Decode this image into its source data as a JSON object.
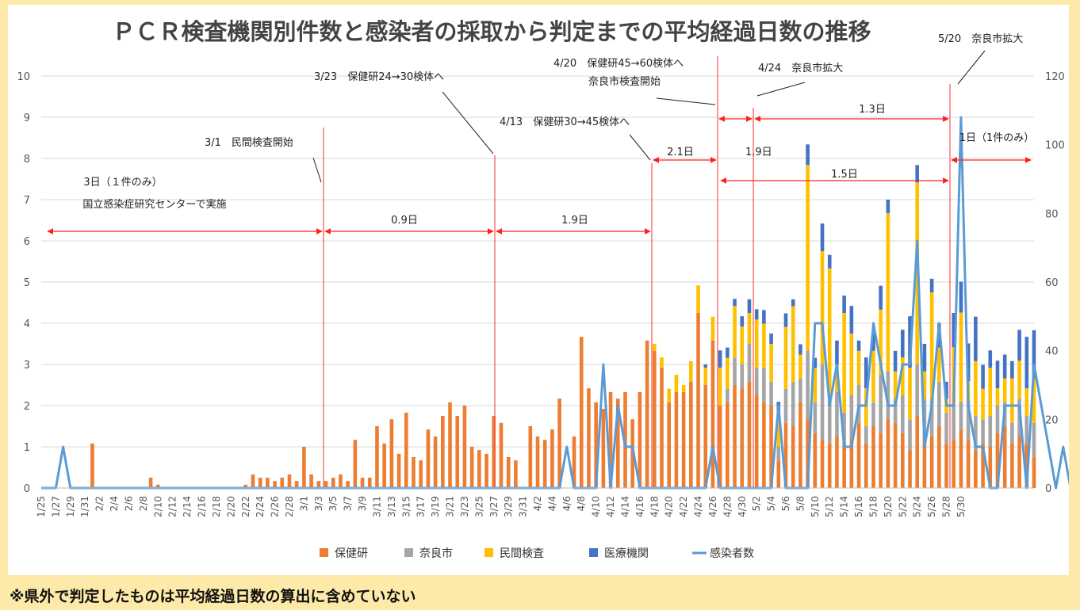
{
  "note": "※県外で判定したものは平均経過日数の算出に含めていない",
  "chart_data": {
    "type": "bar",
    "title": "ＰＣＲ検査機関別件数と感染者の採取から判定までの平均経過日数の推移",
    "stacked": true,
    "left_axis_range": [
      0,
      10
    ],
    "right_axis_range": [
      0,
      120
    ],
    "left_ticks": [
      "0",
      "1",
      "2",
      "3",
      "4",
      "5",
      "6",
      "7",
      "8",
      "9",
      "10"
    ],
    "right_ticks": [
      "0",
      "20",
      "40",
      "60",
      "80",
      "100",
      "120"
    ],
    "start_date": "1/25",
    "x_tick_labels": [
      "1/25",
      "1/27",
      "1/29",
      "1/31",
      "2/2",
      "2/4",
      "2/6",
      "2/8",
      "2/10",
      "2/12",
      "2/14",
      "2/16",
      "2/18",
      "2/20",
      "2/22",
      "2/24",
      "2/26",
      "2/28",
      "3/1",
      "3/3",
      "3/5",
      "3/7",
      "3/9",
      "3/11",
      "3/13",
      "3/15",
      "3/17",
      "3/19",
      "3/21",
      "3/23",
      "3/25",
      "3/27",
      "3/29",
      "3/31",
      "4/2",
      "4/4",
      "4/6",
      "4/8",
      "4/10",
      "4/12",
      "4/14",
      "4/16",
      "4/18",
      "4/20",
      "4/22",
      "4/24",
      "4/26",
      "4/28",
      "4/30",
      "5/2",
      "5/4",
      "5/6",
      "5/8",
      "5/10",
      "5/12",
      "5/14",
      "5/16",
      "5/18",
      "5/20",
      "5/22",
      "5/24",
      "5/26",
      "5/28",
      "5/30"
    ],
    "legend": [
      "保健研",
      "奈良市",
      "民間検査",
      "医療機関",
      "感染者数"
    ],
    "legend_position": "bottom",
    "colors": {
      "hoken": "#ed7d31",
      "nara": "#a5a5a5",
      "minkan": "#ffc000",
      "iryo": "#4472c4",
      "kansen": "#5b9bd5"
    },
    "grid": true,
    "series": [
      {
        "name": "保健研",
        "axis": "left",
        "values": [
          0,
          0,
          0,
          0,
          0,
          0,
          0,
          1.08,
          0,
          0,
          0,
          0,
          0,
          0,
          0,
          0.25,
          0.08,
          0,
          0,
          0,
          0,
          0,
          0,
          0,
          0,
          0,
          0,
          0,
          0.08,
          0.33,
          0.25,
          0.25,
          0.17,
          0.25,
          0.33,
          0.17,
          1,
          0.33,
          0.17,
          0.17,
          0.25,
          0.33,
          0.17,
          1.17,
          0.25,
          0.25,
          1.5,
          1.08,
          1.67,
          0.83,
          1.83,
          0.75,
          0.67,
          1.42,
          1.25,
          1.75,
          2.08,
          1.75,
          2,
          1,
          0.92,
          0.83,
          1.75,
          1.58,
          0.75,
          0.67,
          0,
          1.5,
          1.25,
          1.17,
          1.42,
          2.17,
          0,
          1.25,
          3.67,
          2.42,
          2.08,
          1.92,
          2.33,
          2.17,
          2.33,
          1.67,
          2.33,
          3.58,
          3.33,
          2.92,
          2.08,
          2.33,
          2.33,
          2.58,
          4.25,
          2.5,
          3.58,
          2,
          2.08,
          2.5,
          2.42,
          2.58,
          2.25,
          2.08,
          2,
          0.67,
          1.58,
          1.5,
          2.08,
          1.67,
          1.33,
          1.17,
          1.08,
          1.25,
          1.08,
          1.17,
          1.58,
          1.08,
          1.5,
          1.33,
          1.67,
          1.58,
          1.33,
          0.92,
          1.75,
          1.33,
          1.25,
          1.5,
          1.08,
          1.17,
          1.42,
          1.17,
          0.92,
          1.08,
          1,
          1.33,
          1.5,
          1.08,
          1.25,
          1.08,
          0.75
        ]
      },
      {
        "name": "奈良市",
        "axis": "left",
        "values": [
          0,
          0,
          0,
          0,
          0,
          0,
          0,
          0,
          0,
          0,
          0,
          0,
          0,
          0,
          0,
          0,
          0,
          0,
          0,
          0,
          0,
          0,
          0,
          0,
          0,
          0,
          0,
          0,
          0,
          0,
          0,
          0,
          0,
          0,
          0,
          0,
          0,
          0,
          0,
          0,
          0,
          0,
          0,
          0,
          0,
          0,
          0,
          0,
          0,
          0,
          0,
          0,
          0,
          0,
          0,
          0,
          0,
          0,
          0,
          0,
          0,
          0,
          0,
          0,
          0,
          0,
          0,
          0,
          0,
          0,
          0,
          0,
          0,
          0,
          0,
          0,
          0,
          0,
          0,
          0,
          0,
          0,
          0,
          0,
          0,
          0,
          0,
          0,
          0,
          0,
          0,
          0,
          0,
          0,
          0.33,
          0.67,
          0.58,
          0.92,
          0.67,
          0.83,
          0.58,
          0.33,
          0.83,
          1.08,
          0.58,
          1.67,
          0.75,
          1.83,
          1.17,
          1.08,
          0.75,
          1.08,
          0.92,
          0.42,
          0.58,
          1.42,
          1.17,
          0.58,
          0.92,
          0.75,
          1.25,
          0.83,
          0.92,
          1.08,
          0.75,
          0.83,
          0.67,
          0.92,
          0.83,
          0.58,
          0.75,
          0.67,
          0.58,
          0.5,
          0.92,
          0.67,
          0.83,
          0.42,
          0.25
        ]
      },
      {
        "name": "民間検査",
        "axis": "left",
        "values": [
          0,
          0,
          0,
          0,
          0,
          0,
          0,
          0,
          0,
          0,
          0,
          0,
          0,
          0,
          0,
          0,
          0,
          0,
          0,
          0,
          0,
          0,
          0,
          0,
          0,
          0,
          0,
          0,
          0,
          0,
          0,
          0,
          0,
          0,
          0,
          0,
          0,
          0,
          0,
          0,
          0,
          0,
          0,
          0,
          0,
          0,
          0,
          0,
          0,
          0,
          0,
          0,
          0,
          0,
          0,
          0,
          0,
          0,
          0,
          0,
          0,
          0,
          0,
          0,
          0,
          0,
          0,
          0,
          0,
          0,
          0,
          0,
          0,
          0,
          0,
          0,
          0,
          0,
          0,
          0,
          0,
          0,
          0,
          0,
          0.17,
          0.25,
          0.33,
          0.42,
          0.17,
          0.5,
          0.67,
          0.42,
          0.58,
          0.92,
          0.75,
          1.25,
          0.92,
          0.75,
          1.17,
          1.08,
          0.92,
          0.67,
          1.5,
          1.83,
          0.58,
          4.5,
          0.83,
          2.75,
          3.08,
          0.67,
          2.42,
          1.5,
          0.83,
          0.92,
          1.25,
          1.58,
          3.83,
          0.67,
          0.92,
          1.25,
          4.42,
          0.67,
          2.58,
          0.83,
          0.33,
          1.42,
          2.17,
          0.5,
          1.33,
          0.75,
          1.17,
          0.42,
          0.58,
          1.08,
          0.92,
          0.67,
          1.08,
          1.42,
          0.83,
          0.25,
          0.58
        ]
      },
      {
        "name": "医療機関",
        "axis": "left",
        "values": [
          0,
          0,
          0,
          0,
          0,
          0,
          0,
          0,
          0,
          0,
          0,
          0,
          0,
          0,
          0,
          0,
          0,
          0,
          0,
          0,
          0,
          0,
          0,
          0,
          0,
          0,
          0,
          0,
          0,
          0,
          0,
          0,
          0,
          0,
          0,
          0,
          0,
          0,
          0,
          0,
          0,
          0,
          0,
          0,
          0,
          0,
          0,
          0,
          0,
          0,
          0,
          0,
          0,
          0,
          0,
          0,
          0,
          0,
          0,
          0,
          0,
          0,
          0,
          0,
          0,
          0,
          0,
          0,
          0,
          0,
          0,
          0,
          0,
          0,
          0,
          0,
          0,
          0,
          0,
          0,
          0,
          0,
          0,
          0,
          0,
          0,
          0,
          0,
          0,
          0,
          0,
          0.08,
          0,
          0.42,
          0.25,
          0.17,
          0.25,
          0.33,
          0.25,
          0.33,
          0.25,
          0.42,
          0.33,
          0.17,
          0.25,
          0.5,
          0.25,
          0.67,
          0.33,
          0.58,
          0.42,
          0.67,
          0.25,
          0.75,
          0.42,
          0.58,
          0.33,
          0.5,
          0.67,
          1.25,
          0.42,
          0.67,
          0.33,
          0.58,
          0.42,
          0.83,
          0.75,
          0.92,
          1.08,
          0.58,
          0.42,
          0.67,
          0.58,
          0.42,
          0.75,
          1.25,
          1.17,
          0.42,
          0.58
        ]
      },
      {
        "name": "感染者数",
        "axis": "right",
        "type": "line",
        "values": [
          0,
          0,
          0,
          12,
          0,
          0,
          0,
          0,
          0,
          0,
          0,
          0,
          0,
          0,
          0,
          0,
          0,
          0,
          0,
          0,
          0,
          0,
          0,
          0,
          0,
          0,
          0,
          0,
          0,
          0,
          0,
          0,
          0,
          0,
          0,
          0,
          0,
          0,
          0,
          0,
          0,
          0,
          0,
          0,
          0,
          0,
          0,
          0,
          0,
          0,
          0,
          0,
          0,
          0,
          0,
          0,
          0,
          0,
          0,
          0,
          0,
          0,
          0,
          0,
          0,
          0,
          0,
          0,
          0,
          0,
          0,
          0,
          12,
          0,
          0,
          0,
          0,
          36,
          0,
          24,
          12,
          12,
          0,
          0,
          0,
          0,
          0,
          0,
          0,
          0,
          0,
          0,
          12,
          0,
          0,
          0,
          0,
          0,
          0,
          0,
          0,
          24,
          0,
          0,
          0,
          0,
          48,
          48,
          24,
          36,
          12,
          12,
          24,
          24,
          48,
          36,
          24,
          24,
          36,
          36,
          72,
          12,
          24,
          48,
          24,
          24,
          108,
          24,
          12,
          12,
          0,
          0,
          24,
          24,
          24,
          0,
          36,
          24,
          12,
          0,
          12,
          0,
          12,
          12,
          0,
          0,
          0,
          0
        ]
      }
    ]
  },
  "annotations": [
    {
      "text": "3日（１件のみ）"
    },
    {
      "text": "国立感染症研究センターで実施"
    },
    {
      "text": "3/1　民間検査開始"
    },
    {
      "text": "0.9日"
    },
    {
      "text": "3/23　保健研24→30検体へ"
    },
    {
      "text": "1.9日"
    },
    {
      "text": "4/13　保健研30→45検体へ"
    },
    {
      "text": "2.1日"
    },
    {
      "text": "4/20　保健研45→60検体へ"
    },
    {
      "text": "奈良市検査開始"
    },
    {
      "text": "1.9日"
    },
    {
      "text": "4/24　奈良市拡大"
    },
    {
      "text": "1.3日"
    },
    {
      "text": "1.5日"
    },
    {
      "text": "5/20　奈良市拡大"
    },
    {
      "text": "1日（1件のみ）"
    }
  ]
}
